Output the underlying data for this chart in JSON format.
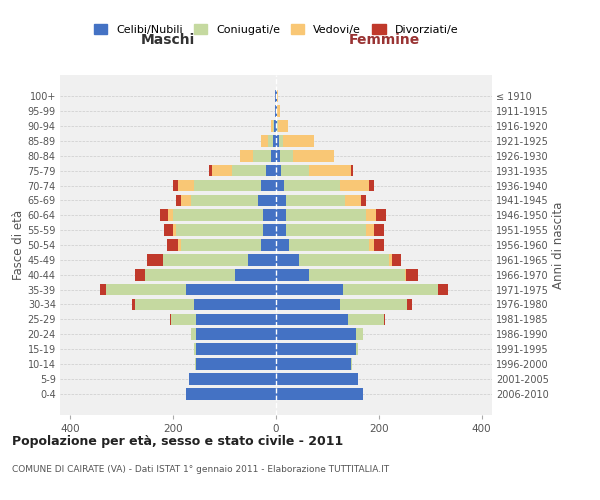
{
  "age_groups": [
    "0-4",
    "5-9",
    "10-14",
    "15-19",
    "20-24",
    "25-29",
    "30-34",
    "35-39",
    "40-44",
    "45-49",
    "50-54",
    "55-59",
    "60-64",
    "65-69",
    "70-74",
    "75-79",
    "80-84",
    "85-89",
    "90-94",
    "95-99",
    "100+"
  ],
  "birth_years": [
    "2006-2010",
    "2001-2005",
    "1996-2000",
    "1991-1995",
    "1986-1990",
    "1981-1985",
    "1976-1980",
    "1971-1975",
    "1966-1970",
    "1961-1965",
    "1956-1960",
    "1951-1955",
    "1946-1950",
    "1941-1945",
    "1936-1940",
    "1931-1935",
    "1926-1930",
    "1921-1925",
    "1916-1920",
    "1911-1915",
    "≤ 1910"
  ],
  "maschi": {
    "celibi": [
      175,
      170,
      155,
      155,
      155,
      155,
      160,
      175,
      80,
      55,
      30,
      25,
      25,
      35,
      30,
      20,
      10,
      5,
      3,
      2,
      2
    ],
    "coniugati": [
      0,
      0,
      2,
      5,
      10,
      50,
      115,
      155,
      175,
      165,
      155,
      170,
      175,
      130,
      130,
      65,
      35,
      10,
      2,
      0,
      0
    ],
    "vedovi": [
      0,
      0,
      0,
      0,
      0,
      0,
      0,
      0,
      0,
      0,
      5,
      5,
      10,
      20,
      30,
      40,
      25,
      15,
      5,
      0,
      0
    ],
    "divorziati": [
      0,
      0,
      0,
      0,
      0,
      2,
      5,
      12,
      20,
      30,
      22,
      18,
      15,
      10,
      10,
      5,
      0,
      0,
      0,
      0,
      0
    ]
  },
  "femmine": {
    "nubili": [
      170,
      160,
      145,
      155,
      155,
      140,
      125,
      130,
      65,
      45,
      25,
      20,
      20,
      20,
      15,
      10,
      8,
      5,
      2,
      2,
      2
    ],
    "coniugate": [
      0,
      0,
      2,
      5,
      15,
      70,
      130,
      185,
      185,
      175,
      155,
      155,
      155,
      115,
      110,
      55,
      25,
      8,
      2,
      0,
      0
    ],
    "vedove": [
      0,
      0,
      0,
      0,
      0,
      0,
      0,
      0,
      2,
      5,
      10,
      15,
      20,
      30,
      55,
      80,
      80,
      60,
      20,
      5,
      2
    ],
    "divorziate": [
      0,
      0,
      0,
      0,
      0,
      2,
      10,
      20,
      25,
      18,
      20,
      20,
      18,
      10,
      10,
      5,
      0,
      0,
      0,
      0,
      0
    ]
  },
  "colors": {
    "celibi": "#4472C4",
    "coniugati": "#C5D9A0",
    "vedovi": "#F9C775",
    "divorziati": "#C0392B"
  },
  "title": "Popolazione per età, sesso e stato civile - 2011",
  "subtitle": "COMUNE DI CAIRATE (VA) - Dati ISTAT 1° gennaio 2011 - Elaborazione TUTTITALIA.IT",
  "xlabel_left": "Maschi",
  "xlabel_right": "Femmine",
  "ylabel_left": "Fasce di età",
  "ylabel_right": "Anni di nascita",
  "xlim": 420,
  "legend_labels": [
    "Celibi/Nubili",
    "Coniugati/e",
    "Vedovi/e",
    "Divorziati/e"
  ],
  "bg_color": "#ffffff",
  "plot_bg": "#f0f0f0",
  "grid_color": "#cccccc"
}
